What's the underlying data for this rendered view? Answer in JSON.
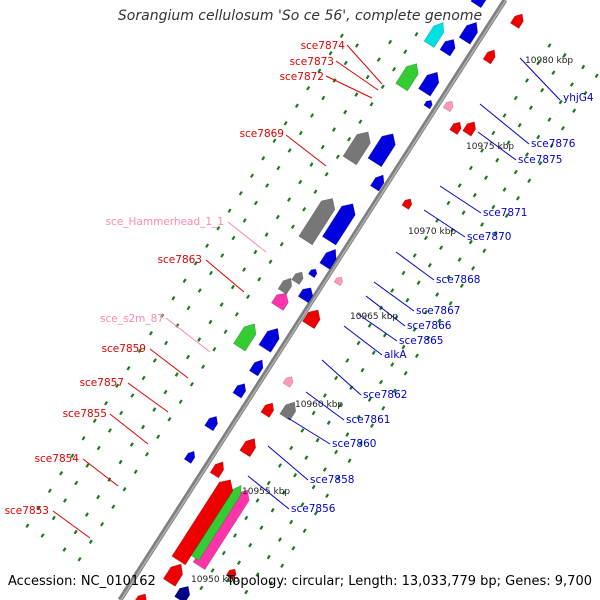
{
  "title": "Sorangium cellulosum 'So ce 56', complete genome",
  "footer": {
    "accession": "Accession: NC_010162",
    "info": "Topology: circular; Length: 13,033,779 bp; Genes: 9,700"
  },
  "colors": {
    "backbone": "#888888",
    "forward_label": "#dd0000",
    "reverse_label": "#0000cc",
    "rna_label": "#ff88aa",
    "tick": "#1a7a1a"
  },
  "scale_labels": [
    "10980 kbp",
    "10975 kbp",
    "10970 kbp",
    "10965 kbp",
    "10960 kbp",
    "10955 kbp",
    "10950 kbp"
  ],
  "left_labels": [
    {
      "text": "sce7874",
      "kind": "gene"
    },
    {
      "text": "sce7873",
      "kind": "gene"
    },
    {
      "text": "sce7872",
      "kind": "gene"
    },
    {
      "text": "sce7869",
      "kind": "gene"
    },
    {
      "text": "sce_Hammerhead_1_1",
      "kind": "rna"
    },
    {
      "text": "sce7863",
      "kind": "gene"
    },
    {
      "text": "sce_s2m_87",
      "kind": "rna"
    },
    {
      "text": "sce7859",
      "kind": "gene"
    },
    {
      "text": "sce7857",
      "kind": "gene"
    },
    {
      "text": "sce7855",
      "kind": "gene"
    },
    {
      "text": "sce7854",
      "kind": "gene"
    },
    {
      "text": "sce7853",
      "kind": "gene"
    }
  ],
  "right_labels": [
    {
      "text": "yhjG4"
    },
    {
      "text": "sce7876"
    },
    {
      "text": "sce7875"
    },
    {
      "text": "sce7871"
    },
    {
      "text": "sce7870"
    },
    {
      "text": "sce7868"
    },
    {
      "text": "sce7867"
    },
    {
      "text": "sce7866"
    },
    {
      "text": "sce7865"
    },
    {
      "text": "alkA"
    },
    {
      "text": "sce7862"
    },
    {
      "text": "sce7861"
    },
    {
      "text": "sce7860"
    },
    {
      "text": "sce7858"
    },
    {
      "text": "sce7856"
    }
  ]
}
